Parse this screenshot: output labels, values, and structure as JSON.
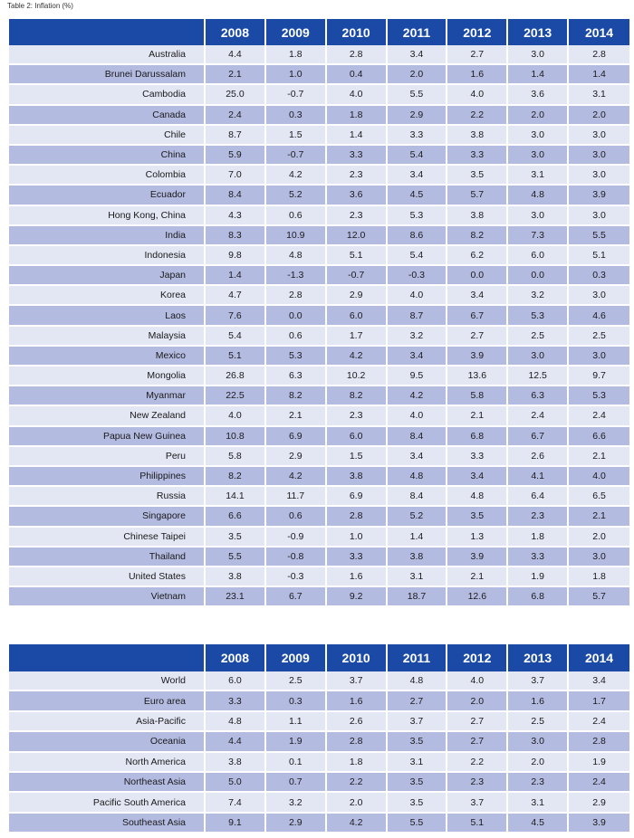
{
  "caption": "Table 2: Inflation (%)",
  "years": [
    "2008",
    "2009",
    "2010",
    "2011",
    "2012",
    "2013",
    "2014"
  ],
  "economies": [
    {
      "name": "Australia",
      "values": [
        "4.4",
        "1.8",
        "2.8",
        "3.4",
        "2.7",
        "3.0",
        "2.8"
      ]
    },
    {
      "name": "Brunei Darussalam",
      "values": [
        "2.1",
        "1.0",
        "0.4",
        "2.0",
        "1.6",
        "1.4",
        "1.4"
      ]
    },
    {
      "name": "Cambodia",
      "values": [
        "25.0",
        "-0.7",
        "4.0",
        "5.5",
        "4.0",
        "3.6",
        "3.1"
      ]
    },
    {
      "name": "Canada",
      "values": [
        "2.4",
        "0.3",
        "1.8",
        "2.9",
        "2.2",
        "2.0",
        "2.0"
      ]
    },
    {
      "name": "Chile",
      "values": [
        "8.7",
        "1.5",
        "1.4",
        "3.3",
        "3.8",
        "3.0",
        "3.0"
      ]
    },
    {
      "name": "China",
      "values": [
        "5.9",
        "-0.7",
        "3.3",
        "5.4",
        "3.3",
        "3.0",
        "3.0"
      ]
    },
    {
      "name": "Colombia",
      "values": [
        "7.0",
        "4.2",
        "2.3",
        "3.4",
        "3.5",
        "3.1",
        "3.0"
      ]
    },
    {
      "name": "Ecuador",
      "values": [
        "8.4",
        "5.2",
        "3.6",
        "4.5",
        "5.7",
        "4.8",
        "3.9"
      ]
    },
    {
      "name": "Hong Kong, China",
      "values": [
        "4.3",
        "0.6",
        "2.3",
        "5.3",
        "3.8",
        "3.0",
        "3.0"
      ]
    },
    {
      "name": "India",
      "values": [
        "8.3",
        "10.9",
        "12.0",
        "8.6",
        "8.2",
        "7.3",
        "5.5"
      ]
    },
    {
      "name": "Indonesia",
      "values": [
        "9.8",
        "4.8",
        "5.1",
        "5.4",
        "6.2",
        "6.0",
        "5.1"
      ]
    },
    {
      "name": "Japan",
      "values": [
        "1.4",
        "-1.3",
        "-0.7",
        "-0.3",
        "0.0",
        "0.0",
        "0.3"
      ]
    },
    {
      "name": "Korea",
      "values": [
        "4.7",
        "2.8",
        "2.9",
        "4.0",
        "3.4",
        "3.2",
        "3.0"
      ]
    },
    {
      "name": "Laos",
      "values": [
        "7.6",
        "0.0",
        "6.0",
        "8.7",
        "6.7",
        "5.3",
        "4.6"
      ]
    },
    {
      "name": "Malaysia",
      "values": [
        "5.4",
        "0.6",
        "1.7",
        "3.2",
        "2.7",
        "2.5",
        "2.5"
      ]
    },
    {
      "name": "Mexico",
      "values": [
        "5.1",
        "5.3",
        "4.2",
        "3.4",
        "3.9",
        "3.0",
        "3.0"
      ]
    },
    {
      "name": "Mongolia",
      "values": [
        "26.8",
        "6.3",
        "10.2",
        "9.5",
        "13.6",
        "12.5",
        "9.7"
      ]
    },
    {
      "name": "Myanmar",
      "values": [
        "22.5",
        "8.2",
        "8.2",
        "4.2",
        "5.8",
        "6.3",
        "5.3"
      ]
    },
    {
      "name": "New Zealand",
      "values": [
        "4.0",
        "2.1",
        "2.3",
        "4.0",
        "2.1",
        "2.4",
        "2.4"
      ]
    },
    {
      "name": "Papua New Guinea",
      "values": [
        "10.8",
        "6.9",
        "6.0",
        "8.4",
        "6.8",
        "6.7",
        "6.6"
      ]
    },
    {
      "name": "Peru",
      "values": [
        "5.8",
        "2.9",
        "1.5",
        "3.4",
        "3.3",
        "2.6",
        "2.1"
      ]
    },
    {
      "name": "Philippines",
      "values": [
        "8.2",
        "4.2",
        "3.8",
        "4.8",
        "3.4",
        "4.1",
        "4.0"
      ]
    },
    {
      "name": "Russia",
      "values": [
        "14.1",
        "11.7",
        "6.9",
        "8.4",
        "4.8",
        "6.4",
        "6.5"
      ]
    },
    {
      "name": "Singapore",
      "values": [
        "6.6",
        "0.6",
        "2.8",
        "5.2",
        "3.5",
        "2.3",
        "2.1"
      ]
    },
    {
      "name": "Chinese Taipei",
      "values": [
        "3.5",
        "-0.9",
        "1.0",
        "1.4",
        "1.3",
        "1.8",
        "2.0"
      ]
    },
    {
      "name": "Thailand",
      "values": [
        "5.5",
        "-0.8",
        "3.3",
        "3.8",
        "3.9",
        "3.3",
        "3.0"
      ]
    },
    {
      "name": "United States",
      "values": [
        "3.8",
        "-0.3",
        "1.6",
        "3.1",
        "2.1",
        "1.9",
        "1.8"
      ]
    },
    {
      "name": "Vietnam",
      "values": [
        "23.1",
        "6.7",
        "9.2",
        "18.7",
        "12.6",
        "6.8",
        "5.7"
      ]
    }
  ],
  "regions": [
    {
      "name": "World",
      "values": [
        "6.0",
        "2.5",
        "3.7",
        "4.8",
        "4.0",
        "3.7",
        "3.4"
      ]
    },
    {
      "name": "Euro area",
      "values": [
        "3.3",
        "0.3",
        "1.6",
        "2.7",
        "2.0",
        "1.6",
        "1.7"
      ]
    },
    {
      "name": "Asia-Pacific",
      "values": [
        "4.8",
        "1.1",
        "2.6",
        "3.7",
        "2.7",
        "2.5",
        "2.4"
      ]
    },
    {
      "name": "Oceania",
      "values": [
        "4.4",
        "1.9",
        "2.8",
        "3.5",
        "2.7",
        "3.0",
        "2.8"
      ]
    },
    {
      "name": "North America",
      "values": [
        "3.8",
        "0.1",
        "1.8",
        "3.1",
        "2.2",
        "2.0",
        "1.9"
      ]
    },
    {
      "name": "Northeast Asia",
      "values": [
        "5.0",
        "0.7",
        "2.2",
        "3.5",
        "2.3",
        "2.3",
        "2.4"
      ]
    },
    {
      "name": "Pacific South America",
      "values": [
        "7.4",
        "3.2",
        "2.0",
        "3.5",
        "3.7",
        "3.1",
        "2.9"
      ]
    },
    {
      "name": "Southeast Asia",
      "values": [
        "9.1",
        "2.9",
        "4.2",
        "5.5",
        "5.1",
        "4.5",
        "3.9"
      ]
    }
  ]
}
